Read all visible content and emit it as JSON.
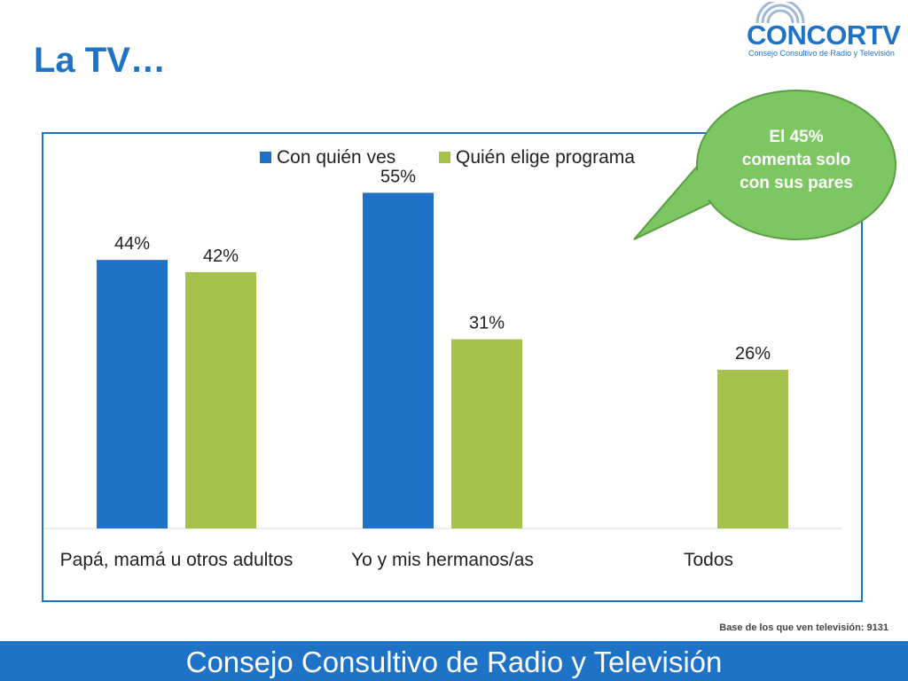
{
  "slide": {
    "title": "La TV…",
    "base_note": "Base de los que ven televisión: 9131",
    "footer": "Consejo Consultivo de Radio y Televisión"
  },
  "logo": {
    "word": "CONCORTV",
    "subtitle": "Consejo Consultivo de Radio y Televisión"
  },
  "callout": {
    "lines": [
      "El 45%",
      "comenta solo",
      "con sus pares"
    ],
    "fill_color": "#7dc763"
  },
  "colors": {
    "series_1": "#1f73c6",
    "series_2": "#a5c24c",
    "accent": "#1f73c6"
  },
  "chart_data": {
    "type": "bar",
    "categories": [
      "Papá, mamá u otros adultos",
      "Yo y mis hermanos/as",
      "Todos"
    ],
    "series": [
      {
        "name": "Con quién ves",
        "values": [
          44,
          55,
          null
        ],
        "labels": [
          "44%",
          "55%",
          ""
        ]
      },
      {
        "name": "Quién elige programa",
        "values": [
          42,
          31,
          26
        ],
        "labels": [
          "42%",
          "31%",
          "26%"
        ]
      }
    ],
    "ylim": [
      0,
      60
    ],
    "grid": false,
    "legend": "top-center",
    "data_labels": true
  }
}
